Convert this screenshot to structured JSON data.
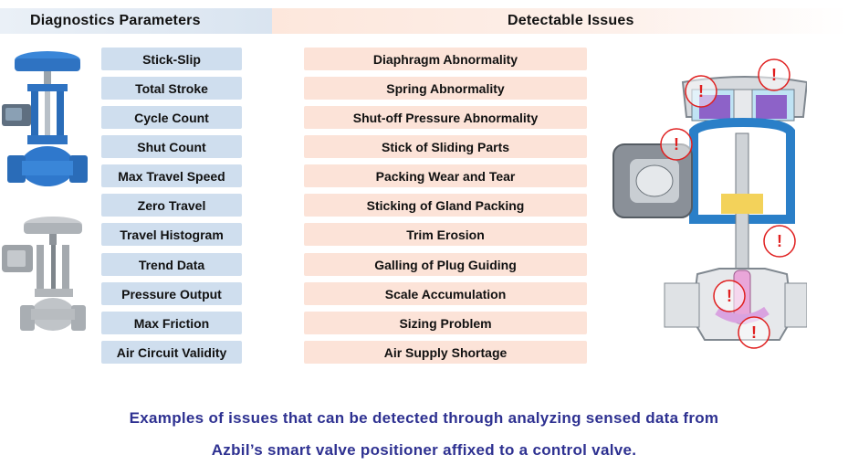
{
  "headers": {
    "left": "Diagnostics Parameters",
    "right": "Detectable Issues"
  },
  "parameters": [
    "Stick-Slip",
    "Total Stroke",
    "Cycle Count",
    "Shut Count",
    "Max Travel Speed",
    "Zero Travel",
    "Travel Histogram",
    "Trend Data",
    "Pressure Output",
    "Max Friction",
    "Air Circuit Validity"
  ],
  "issues": [
    "Diaphragm Abnormality",
    "Spring Abnormality",
    "Shut-off Pressure Abnormality",
    "Stick of Sliding Parts",
    "Packing Wear and Tear",
    "Sticking of Gland Packing",
    "Trim Erosion",
    "Galling of Plug Guiding",
    "Scale Accumulation",
    "Sizing Problem",
    "Air Supply Shortage"
  ],
  "caption": {
    "line1": "Examples of issues that can be detected through analyzing sensed data from",
    "line2": "Azbil’s smart valve positioner affixed to a control valve."
  },
  "warning_mark": "!",
  "colors": {
    "param_box": "#cfdeee",
    "issue_box": "#fce3d8",
    "caption": "#2e3191",
    "warning": "#e02020"
  }
}
